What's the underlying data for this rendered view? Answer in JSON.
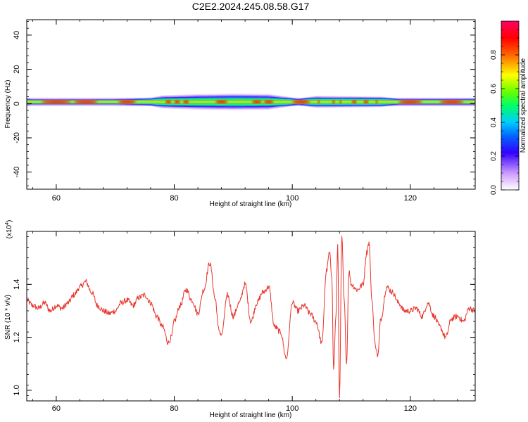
{
  "title": "C2E2.2024.245.08.58.G17",
  "chart_data": [
    {
      "type": "heatmap",
      "xlabel": "Height of straight line (km)",
      "ylabel": "Frequency (Hz)",
      "xlim": [
        55,
        131
      ],
      "ylim": [
        -50,
        49
      ],
      "xticks": [
        "60",
        "80",
        "100",
        "120"
      ],
      "yticks": [
        "40",
        "20",
        "0",
        "-20",
        "-40"
      ],
      "colorbar_label": "Normalized spectral amplitude",
      "colorbar_ticks": [
        "0.0",
        "0.2",
        "0.4",
        "0.6",
        "0.8"
      ],
      "colorbar_range": [
        0,
        1
      ],
      "band_center_hz": 1,
      "band_halfwidth_hz": [
        {
          "x": 55.5,
          "w": 1.6
        },
        {
          "x": 70,
          "w": 1.6
        },
        {
          "x": 76,
          "w": 2.2
        },
        {
          "x": 78,
          "w": 3.5
        },
        {
          "x": 84,
          "w": 4.2
        },
        {
          "x": 90,
          "w": 4.5
        },
        {
          "x": 96,
          "w": 4.3
        },
        {
          "x": 99,
          "w": 2.8
        },
        {
          "x": 101,
          "w": 1.8
        },
        {
          "x": 104,
          "w": 3.2
        },
        {
          "x": 110,
          "w": 3.0
        },
        {
          "x": 115,
          "w": 2.8
        },
        {
          "x": 118,
          "w": 1.8
        },
        {
          "x": 131,
          "w": 1.8
        }
      ],
      "band_peaks": [
        {
          "x": 60,
          "w": 5.0
        },
        {
          "x": 65,
          "w": 4.0
        },
        {
          "x": 72,
          "w": 3.0
        },
        {
          "x": 79,
          "w": 1.0
        },
        {
          "x": 80.5,
          "w": 1.0
        },
        {
          "x": 82,
          "w": 1.0
        },
        {
          "x": 88,
          "w": 2.0
        },
        {
          "x": 94,
          "w": 1.6
        },
        {
          "x": 96,
          "w": 1.6
        },
        {
          "x": 101.5,
          "w": 3.0
        },
        {
          "x": 104.5,
          "w": 0.4
        },
        {
          "x": 107,
          "w": 0.5
        },
        {
          "x": 108.2,
          "w": 0.4
        },
        {
          "x": 110.5,
          "w": 0.8
        },
        {
          "x": 112.5,
          "w": 0.8
        },
        {
          "x": 114.3,
          "w": 0.4
        },
        {
          "x": 120,
          "w": 4.0
        },
        {
          "x": 127,
          "w": 4.0
        }
      ]
    },
    {
      "type": "line",
      "xlabel": "Height of straight line (km)",
      "ylabel": "SNR (10 * v/v)",
      "multiplier_label": "(x10",
      "multiplier_exp": "4",
      "multiplier_close": ")",
      "xlim": [
        55,
        131
      ],
      "ylim": [
        0.96,
        1.6
      ],
      "xticks": [
        "60",
        "80",
        "100",
        "120"
      ],
      "yticks": [
        "1.0",
        "1.2",
        "1.4"
      ],
      "color": "#e8352b",
      "x": [
        55,
        56,
        57,
        58,
        59,
        60,
        61,
        62,
        63,
        64,
        65,
        66,
        67,
        68,
        69,
        70,
        71,
        72,
        73,
        74,
        75,
        76,
        77,
        78,
        79,
        79.5,
        80,
        81,
        82,
        83,
        84,
        85,
        86,
        87,
        87.5,
        88,
        89,
        90,
        91,
        92,
        93,
        94,
        95,
        96,
        97,
        98,
        99,
        100,
        101,
        102,
        103,
        104,
        105,
        105.8,
        106.3,
        106.7,
        107.0,
        107.4,
        107.7,
        108.0,
        108.4,
        108.8,
        109.2,
        109.6,
        110.0,
        111.0,
        112.0,
        112.6,
        113.0,
        113.5,
        114.0,
        114.5,
        115.0,
        116.0,
        117.0,
        118.0,
        119.0,
        120.0,
        121.0,
        122.0,
        123.0,
        124.0,
        125.0,
        126.0,
        127.0,
        128.0,
        129.0,
        130.0,
        131.0
      ],
      "values": [
        1.34,
        1.32,
        1.31,
        1.33,
        1.3,
        1.32,
        1.31,
        1.33,
        1.36,
        1.39,
        1.41,
        1.37,
        1.32,
        1.3,
        1.29,
        1.3,
        1.33,
        1.34,
        1.32,
        1.35,
        1.36,
        1.33,
        1.28,
        1.24,
        1.18,
        1.2,
        1.26,
        1.32,
        1.38,
        1.34,
        1.29,
        1.38,
        1.48,
        1.34,
        1.23,
        1.21,
        1.36,
        1.28,
        1.33,
        1.4,
        1.26,
        1.33,
        1.37,
        1.39,
        1.24,
        1.22,
        1.12,
        1.33,
        1.3,
        1.32,
        1.29,
        1.26,
        1.18,
        1.45,
        1.52,
        1.43,
        1.08,
        1.28,
        1.55,
        0.97,
        1.58,
        1.34,
        1.1,
        1.45,
        1.4,
        1.38,
        1.4,
        1.52,
        1.56,
        1.34,
        1.18,
        1.13,
        1.27,
        1.39,
        1.37,
        1.33,
        1.3,
        1.3,
        1.31,
        1.28,
        1.33,
        1.28,
        1.24,
        1.2,
        1.27,
        1.28,
        1.26,
        1.31,
        1.3
      ]
    }
  ]
}
